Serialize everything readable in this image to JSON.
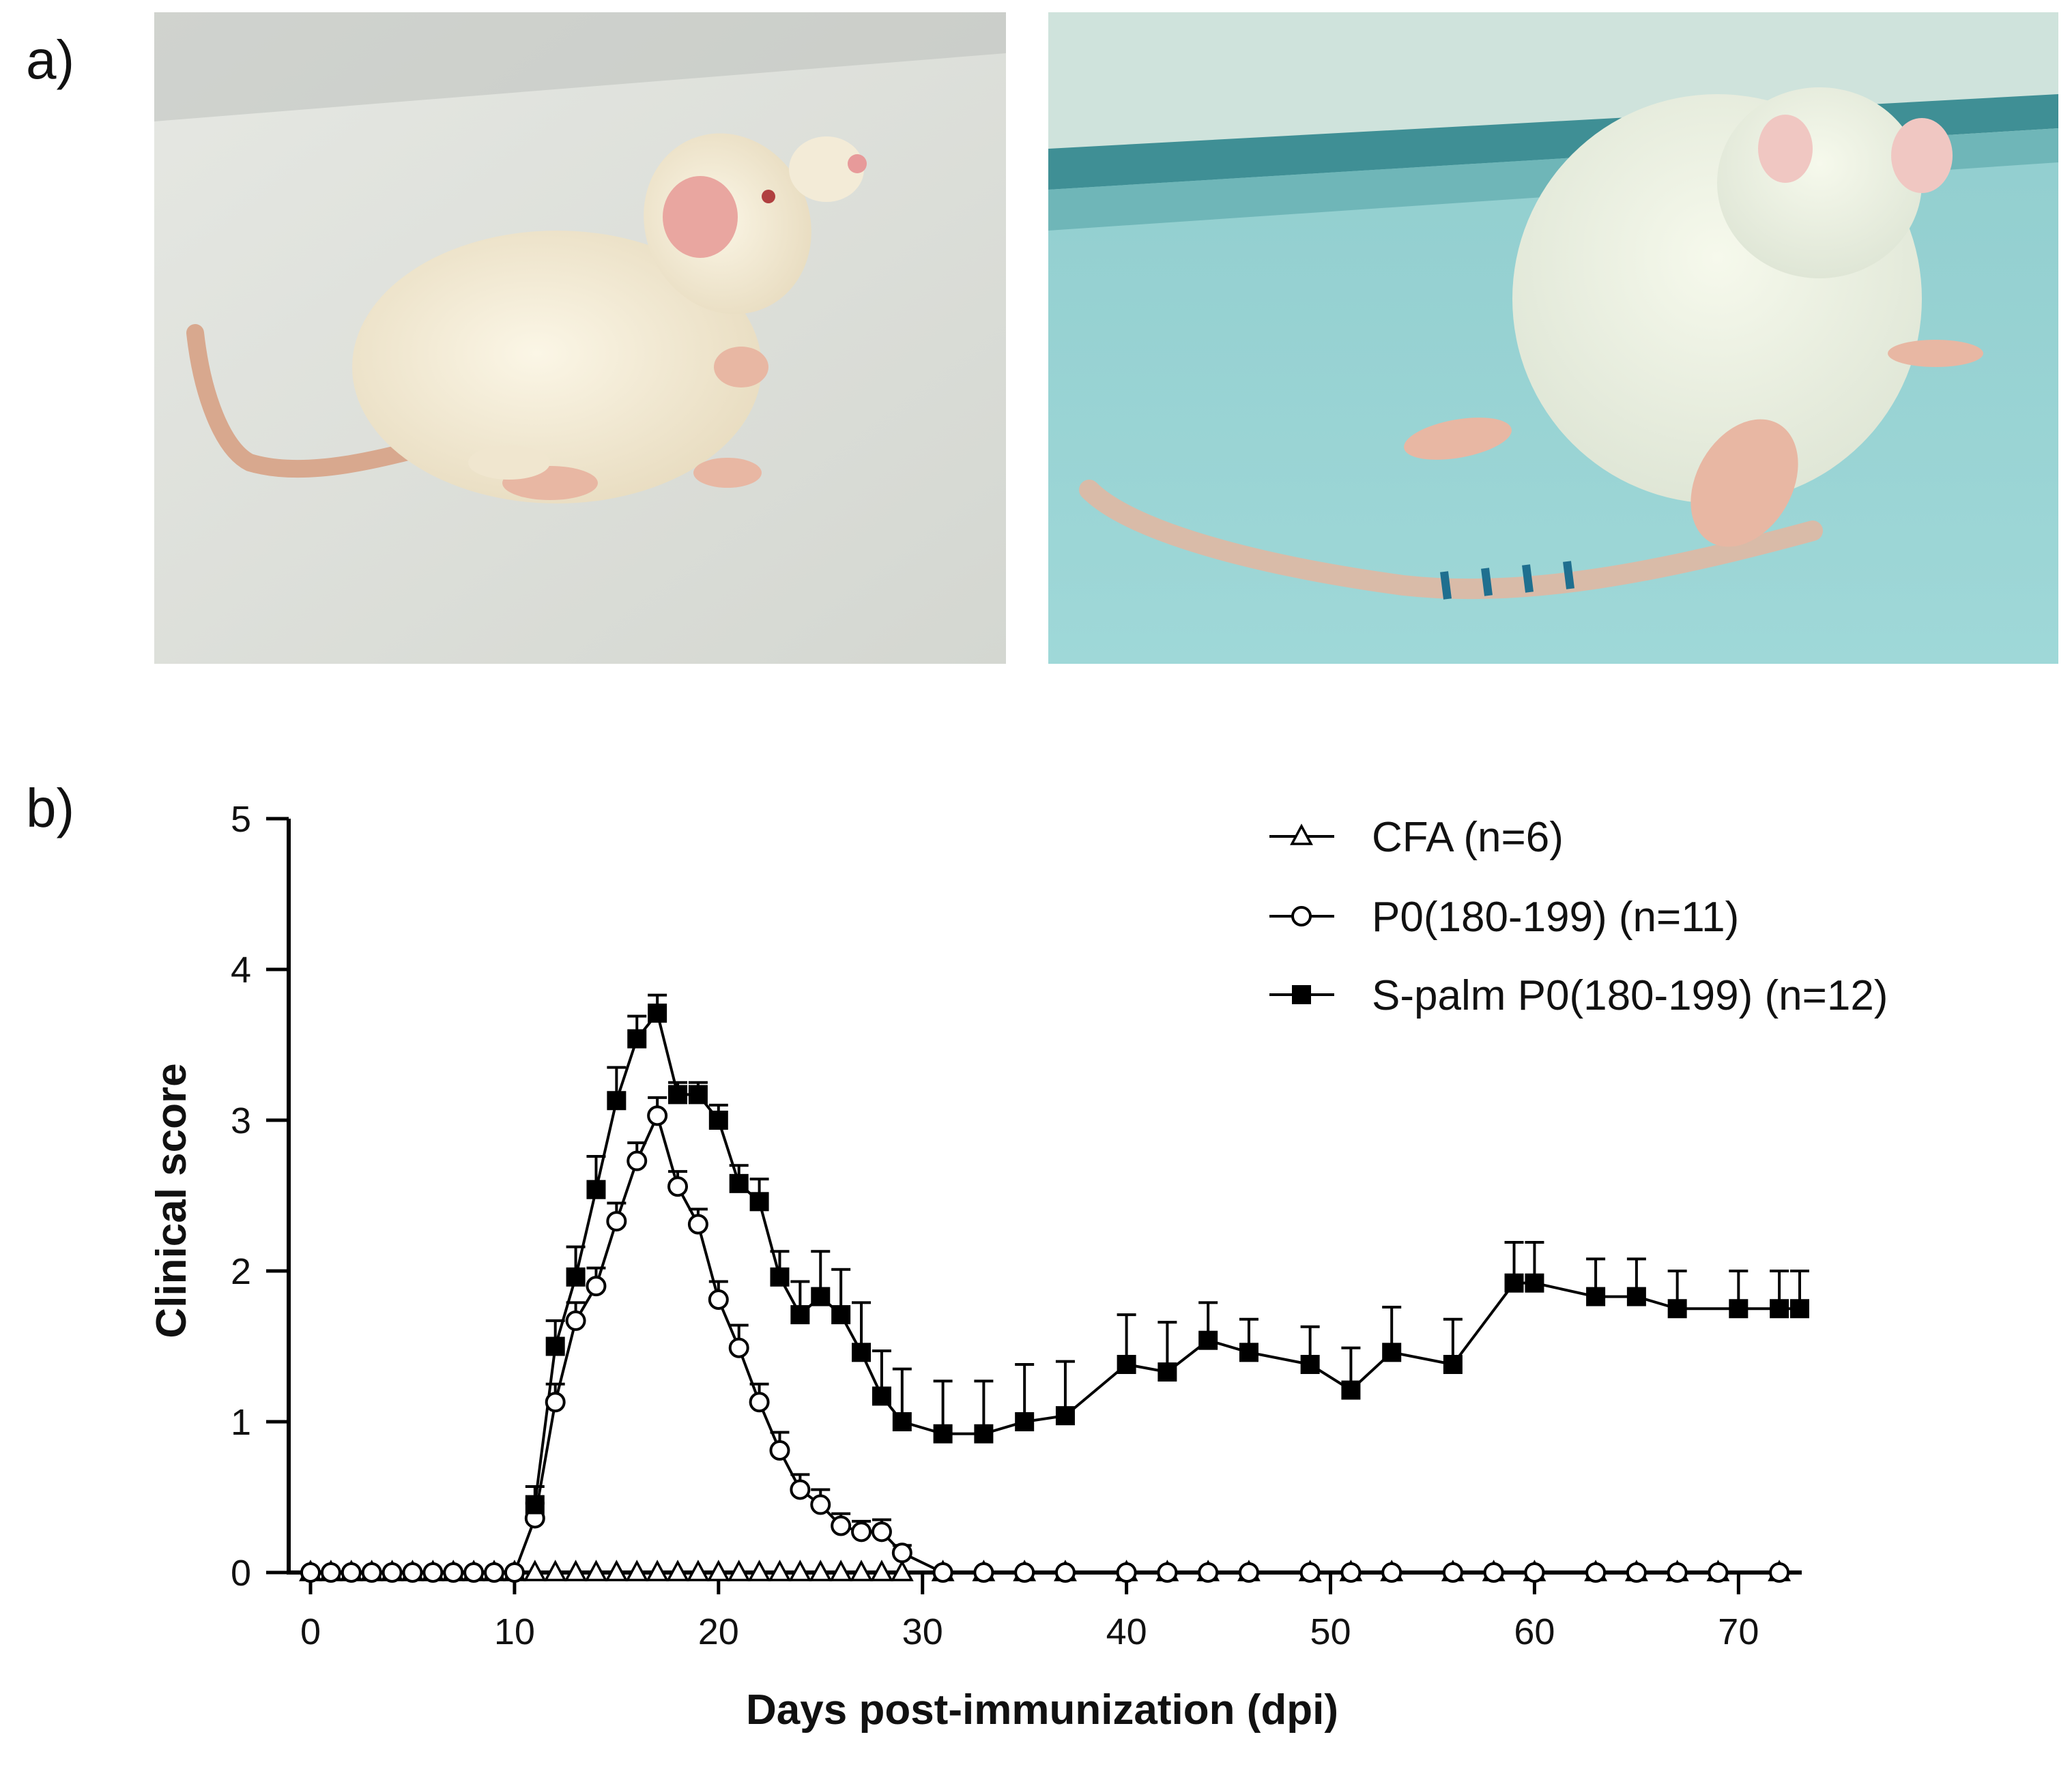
{
  "panel_a": {
    "label": "a)",
    "photos": [
      {
        "subject": "healthy-rat-photo"
      },
      {
        "subject": "paralyzed-rat-photo"
      }
    ]
  },
  "panel_b": {
    "label": "b)"
  },
  "colors": {
    "line": "#000000",
    "background": "#ffffff"
  },
  "chart_data": {
    "type": "line",
    "title": "",
    "xlabel": "Days post-immunization (dpi)",
    "ylabel": "Clinical score",
    "xlim": [
      0,
      73
    ],
    "ylim": [
      0,
      5
    ],
    "xticks": [
      0,
      10,
      20,
      30,
      40,
      50,
      60,
      70
    ],
    "yticks": [
      0,
      1,
      2,
      3,
      4,
      5
    ],
    "grid": false,
    "legend_position": "top-right",
    "series": [
      {
        "name": "CFA (n=6)",
        "marker": "open-triangle",
        "x": [
          0,
          1,
          2,
          3,
          4,
          5,
          6,
          7,
          8,
          9,
          10,
          11,
          12,
          13,
          14,
          15,
          16,
          17,
          18,
          19,
          20,
          21,
          22,
          23,
          24,
          25,
          26,
          27,
          28,
          29,
          31,
          33,
          35,
          37,
          40,
          42,
          44,
          46,
          49,
          51,
          53,
          56,
          58,
          60,
          63,
          65,
          67,
          69,
          72
        ],
        "y": [
          0,
          0,
          0,
          0,
          0,
          0,
          0,
          0,
          0,
          0,
          0,
          0,
          0,
          0,
          0,
          0,
          0,
          0,
          0,
          0,
          0,
          0,
          0,
          0,
          0,
          0,
          0,
          0,
          0,
          0,
          0,
          0,
          0,
          0,
          0,
          0,
          0,
          0,
          0,
          0,
          0,
          0,
          0,
          0,
          0,
          0,
          0,
          0,
          0
        ],
        "error": []
      },
      {
        "name": "P0(180-199) (n=11)",
        "marker": "open-circle",
        "x": [
          0,
          1,
          2,
          3,
          4,
          5,
          6,
          7,
          8,
          9,
          10,
          11,
          12,
          13,
          14,
          15,
          16,
          17,
          18,
          19,
          20,
          21,
          22,
          23,
          24,
          25,
          26,
          27,
          28,
          29,
          31,
          33,
          35,
          37,
          40,
          42,
          44,
          46,
          49,
          51,
          53,
          56,
          58,
          60,
          63,
          65,
          67,
          69,
          72
        ],
        "y": [
          0,
          0,
          0,
          0,
          0,
          0,
          0,
          0,
          0,
          0,
          0,
          0.36,
          1.13,
          1.67,
          1.9,
          2.33,
          2.73,
          3.03,
          2.56,
          2.31,
          1.81,
          1.49,
          1.13,
          0.81,
          0.55,
          0.45,
          0.31,
          0.27,
          0.27,
          0.13,
          0,
          0,
          0,
          0,
          0,
          0,
          0,
          0,
          0,
          0,
          0,
          0,
          0,
          0,
          0,
          0,
          0,
          0,
          0
        ],
        "error": [
          0,
          0,
          0,
          0,
          0,
          0,
          0,
          0,
          0,
          0,
          0,
          0.1,
          0.12,
          0.12,
          0.12,
          0.12,
          0.12,
          0.12,
          0.1,
          0.1,
          0.12,
          0.15,
          0.12,
          0.12,
          0.1,
          0.1,
          0.08,
          0.07,
          0.08,
          0.05,
          0,
          0,
          0,
          0,
          0,
          0,
          0,
          0,
          0,
          0,
          0,
          0,
          0,
          0,
          0,
          0,
          0,
          0,
          0
        ]
      },
      {
        "name": "S-palm P0(180-199) (n=12)",
        "marker": "filled-square",
        "x": [
          11,
          12,
          13,
          14,
          15,
          16,
          17,
          18,
          19,
          20,
          21,
          22,
          23,
          24,
          25,
          26,
          27,
          28,
          29,
          31,
          33,
          35,
          37,
          40,
          42,
          44,
          46,
          49,
          51,
          53,
          56,
          59,
          60,
          63,
          65,
          67,
          70,
          72,
          73
        ],
        "y": [
          0.45,
          1.5,
          1.96,
          2.54,
          3.13,
          3.54,
          3.71,
          3.17,
          3.17,
          3.0,
          2.58,
          2.46,
          1.96,
          1.71,
          1.83,
          1.71,
          1.46,
          1.17,
          1.0,
          0.92,
          0.92,
          1.0,
          1.04,
          1.38,
          1.33,
          1.54,
          1.46,
          1.38,
          1.21,
          1.46,
          1.38,
          1.92,
          1.92,
          1.83,
          1.83,
          1.75,
          1.75,
          1.75,
          1.75
        ],
        "error": [
          0.12,
          0.17,
          0.2,
          0.22,
          0.22,
          0.15,
          0.12,
          0.08,
          0.08,
          0.1,
          0.12,
          0.15,
          0.17,
          0.22,
          0.3,
          0.3,
          0.33,
          0.3,
          0.35,
          0.35,
          0.35,
          0.38,
          0.36,
          0.33,
          0.33,
          0.25,
          0.22,
          0.25,
          0.28,
          0.3,
          0.3,
          0.27,
          0.27,
          0.25,
          0.25,
          0.25,
          0.25,
          0.25,
          0.25
        ]
      }
    ]
  }
}
